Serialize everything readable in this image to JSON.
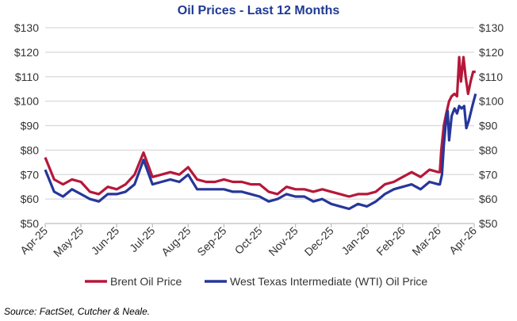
{
  "chart_data": {
    "type": "line",
    "title": "Oil Prices - Last 12 Months",
    "xlabel": "",
    "ylabel": "",
    "ylim": [
      50,
      130
    ],
    "yticks": [
      "$50",
      "$60",
      "$70",
      "$80",
      "$90",
      "$100",
      "$110",
      "$120",
      "$130"
    ],
    "ytick_values": [
      50,
      60,
      70,
      80,
      90,
      100,
      110,
      120,
      130
    ],
    "xticks": [
      "Apr-25",
      "May-25",
      "Jun-25",
      "Jul-25",
      "Aug-25",
      "Sep-25",
      "Oct-25",
      "Nov-25",
      "Dec-25",
      "Jan-26",
      "Feb-26",
      "Mar-26",
      "Apr-26"
    ],
    "x_unit": "months since Apr-25",
    "grid": true,
    "legend_position": "bottom",
    "series": [
      {
        "name": "Brent Oil Price",
        "color": "#B5183A",
        "x": [
          0,
          0.25,
          0.5,
          0.75,
          1,
          1.25,
          1.5,
          1.75,
          2,
          2.25,
          2.5,
          2.75,
          3,
          3.25,
          3.5,
          3.75,
          4,
          4.25,
          4.5,
          4.75,
          5,
          5.25,
          5.5,
          5.75,
          6,
          6.25,
          6.5,
          6.75,
          7,
          7.25,
          7.5,
          7.75,
          8,
          8.25,
          8.5,
          8.75,
          9,
          9.25,
          9.5,
          9.75,
          10,
          10.25,
          10.5,
          10.75,
          11,
          11.04,
          11.08,
          11.15,
          11.22,
          11.3,
          11.37,
          11.45,
          11.52,
          11.58,
          11.63,
          11.7,
          11.76,
          11.83,
          11.9,
          11.97,
          12.04
        ],
        "values": [
          77,
          68,
          66,
          68,
          67,
          63,
          62,
          65,
          64,
          66,
          70,
          79,
          69,
          70,
          71,
          70,
          73,
          68,
          67,
          67,
          68,
          67,
          67,
          66,
          66,
          63,
          62,
          65,
          64,
          64,
          63,
          64,
          63,
          62,
          61,
          62,
          62,
          63,
          66,
          67,
          69,
          71,
          69,
          72,
          71,
          71,
          80,
          90,
          95,
          100,
          102,
          103,
          102,
          118,
          108,
          118,
          110,
          103,
          108,
          112,
          112
        ]
      },
      {
        "name": "West Texas Intermediate (WTI) Oil Price",
        "color": "#26369A",
        "x": [
          0,
          0.25,
          0.5,
          0.75,
          1,
          1.25,
          1.5,
          1.75,
          2,
          2.25,
          2.5,
          2.75,
          3,
          3.25,
          3.5,
          3.75,
          4,
          4.25,
          4.5,
          4.75,
          5,
          5.25,
          5.5,
          5.75,
          6,
          6.25,
          6.5,
          6.75,
          7,
          7.25,
          7.5,
          7.75,
          8,
          8.25,
          8.5,
          8.75,
          9,
          9.25,
          9.5,
          9.75,
          10,
          10.25,
          10.5,
          10.75,
          11,
          11.04,
          11.1,
          11.15,
          11.22,
          11.26,
          11.3,
          11.37,
          11.45,
          11.52,
          11.58,
          11.65,
          11.72,
          11.78,
          11.85,
          11.95,
          12.04
        ],
        "values": [
          72,
          63,
          61,
          64,
          62,
          60,
          59,
          62,
          62,
          63,
          66,
          76,
          66,
          67,
          68,
          67,
          70,
          64,
          64,
          64,
          64,
          63,
          63,
          62,
          61,
          59,
          60,
          62,
          61,
          61,
          59,
          60,
          58,
          57,
          56,
          58,
          57,
          59,
          62,
          64,
          65,
          66,
          64,
          67,
          66,
          66,
          70,
          82,
          93,
          96,
          84,
          94,
          97,
          95,
          98,
          97,
          98,
          89,
          92,
          98,
          103
        ]
      }
    ]
  },
  "source": "Source: FactSet, Cutcher & Neale."
}
